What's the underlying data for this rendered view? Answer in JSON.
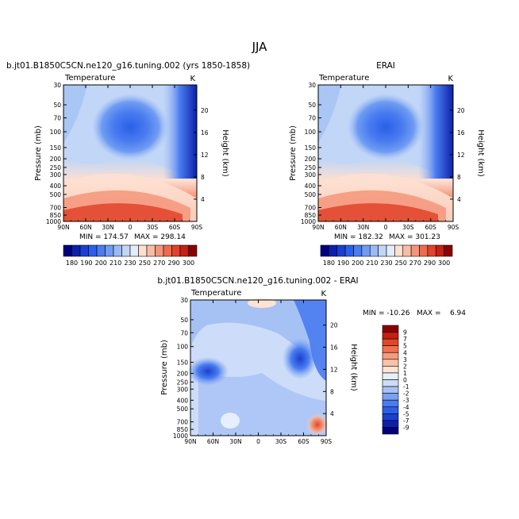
{
  "figure_title": "JJA",
  "colors": {
    "abs_scale": [
      "#00007f",
      "#0b22a8",
      "#1b3fd0",
      "#2a5fe8",
      "#4a7cf0",
      "#6f9cf2",
      "#9abaf4",
      "#c2d6f7",
      "#e2ecfa",
      "#fde0d2",
      "#f8bda6",
      "#f4957a",
      "#ef6b4f",
      "#e0432a",
      "#c42014",
      "#8c0000"
    ],
    "diff_scale": [
      "#00007f",
      "#0b22a8",
      "#1b3fd0",
      "#2a5fe8",
      "#4a7cf0",
      "#7aa2f2",
      "#a6c2f5",
      "#cddcf8",
      "#e6effb",
      "#fde3d4",
      "#f9c2aa",
      "#f49c7c",
      "#ef714f",
      "#e24629",
      "#c51e12",
      "#8c0000"
    ]
  },
  "chart_data": [
    {
      "type": "heatmap",
      "title": "b.jt01.B1850C5CN.ne120_g16.tuning.002 (yrs 1850-1858)",
      "subtitle": "Temperature",
      "units": "K",
      "xlabel": "",
      "ylabel": "Pressure (mb)",
      "ylabel_right": "Height (km)",
      "x_ticks": [
        "90N",
        "60N",
        "30N",
        "0",
        "30S",
        "60S",
        "90S"
      ],
      "y_ticks": [
        "30",
        "50",
        "70",
        "100",
        "150",
        "200",
        "250",
        "300",
        "400",
        "500",
        "700",
        "850",
        "1000"
      ],
      "y_ticks_right": [
        "20",
        "16",
        "12",
        "8",
        "4"
      ],
      "ylim": [
        1000,
        30
      ],
      "min": "MIN = 174.57",
      "max": "MAX = 298.14",
      "colorbar_labels": [
        "180",
        "190",
        "200",
        "210",
        "230",
        "250",
        "270",
        "290",
        "300"
      ]
    },
    {
      "type": "heatmap",
      "title": "ERAI",
      "subtitle": "Temperature",
      "units": "K",
      "xlabel": "",
      "ylabel": "Pressure (mb)",
      "ylabel_right": "Height (km)",
      "x_ticks": [
        "90N",
        "60N",
        "30N",
        "0",
        "30S",
        "60S",
        "90S"
      ],
      "y_ticks": [
        "30",
        "50",
        "70",
        "100",
        "150",
        "200",
        "250",
        "300",
        "400",
        "500",
        "700",
        "850",
        "1000"
      ],
      "y_ticks_right": [
        "20",
        "16",
        "12",
        "8",
        "4"
      ],
      "ylim": [
        1000,
        30
      ],
      "min": "MIN = 182.32",
      "max": "MAX = 301.23",
      "colorbar_labels": [
        "180",
        "190",
        "200",
        "210",
        "230",
        "250",
        "270",
        "290",
        "300"
      ]
    },
    {
      "type": "heatmap",
      "title": "b.jt01.B1850C5CN.ne120_g16.tuning.002 - ERAI",
      "subtitle": "Temperature",
      "units": "K",
      "xlabel": "",
      "ylabel": "Pressure (mb)",
      "ylabel_right": "Height (km)",
      "x_ticks": [
        "90N",
        "60N",
        "30N",
        "0",
        "30S",
        "60S",
        "90S"
      ],
      "y_ticks": [
        "30",
        "50",
        "70",
        "100",
        "150",
        "200",
        "250",
        "300",
        "400",
        "500",
        "700",
        "850",
        "1000"
      ],
      "y_ticks_right": [
        "20",
        "16",
        "12",
        "8",
        "4"
      ],
      "ylim": [
        1000,
        30
      ],
      "minmax": "MIN = -10.26   MAX =    6.94",
      "colorbar_labels": [
        "9",
        "7",
        "5",
        "4",
        "3",
        "2",
        "1",
        "0",
        "-1",
        "-2",
        "-3",
        "-4",
        "-5",
        "-7",
        "-9"
      ]
    }
  ]
}
